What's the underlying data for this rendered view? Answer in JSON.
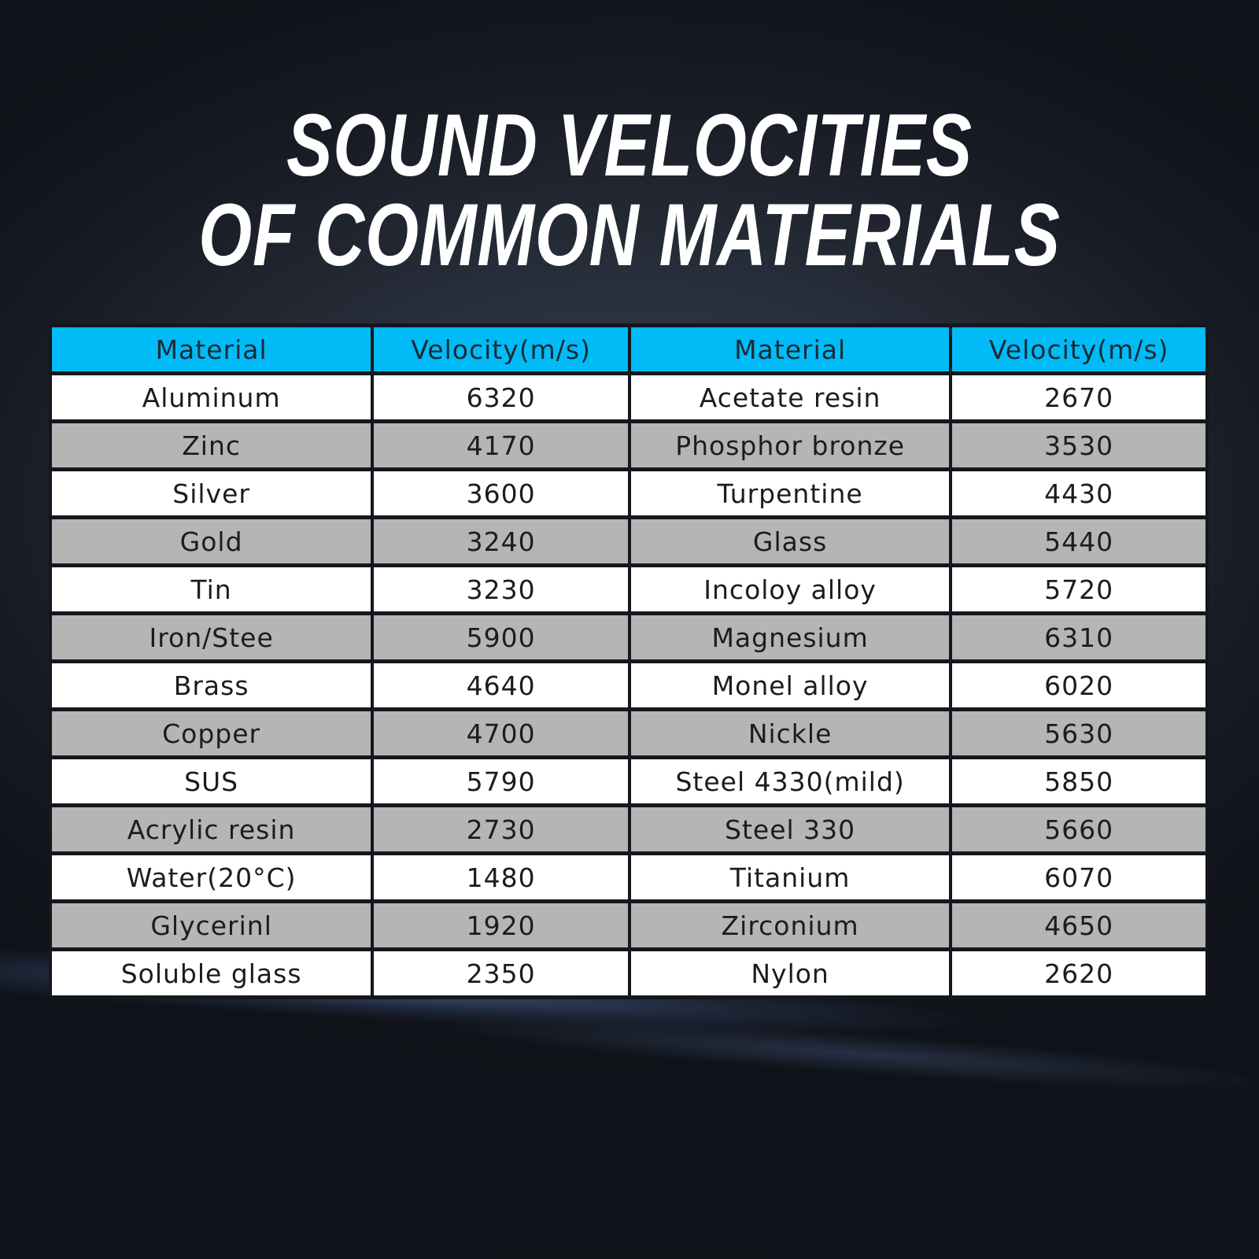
{
  "title": {
    "line1": "SOUND VELOCITIES",
    "line2": "OF COMMON MATERIALS"
  },
  "table": {
    "headers": [
      "Material",
      "Velocity(m/s)",
      "Material",
      "Velocity(m/s)"
    ],
    "rows": [
      [
        "Aluminum",
        "6320",
        "Acetate resin",
        "2670"
      ],
      [
        "Zinc",
        "4170",
        "Phosphor bronze",
        "3530"
      ],
      [
        "Silver",
        "3600",
        "Turpentine",
        "4430"
      ],
      [
        "Gold",
        "3240",
        "Glass",
        "5440"
      ],
      [
        "Tin",
        "3230",
        "Incoloy alloy",
        "5720"
      ],
      [
        "Iron/Stee",
        "5900",
        "Magnesium",
        "6310"
      ],
      [
        "Brass",
        "4640",
        "Monel alloy",
        "6020"
      ],
      [
        "Copper",
        "4700",
        "Nickle",
        "5630"
      ],
      [
        "SUS",
        "5790",
        "Steel 4330(mild)",
        "5850"
      ],
      [
        "Acrylic resin",
        "2730",
        "Steel 330",
        "5660"
      ],
      [
        "Water(20°C)",
        "1480",
        "Titanium",
        "6070"
      ],
      [
        "Glycerinl",
        "1920",
        "Zirconium",
        "4650"
      ],
      [
        "Soluble glass",
        "2350",
        "Nylon",
        "2620"
      ]
    ]
  },
  "colors": {
    "header_bg": "#00bbf6",
    "row_light": "#ffffff",
    "row_dark": "#b5b5b5",
    "grid_lines": "#14171d",
    "title_text": "#ffffff"
  }
}
